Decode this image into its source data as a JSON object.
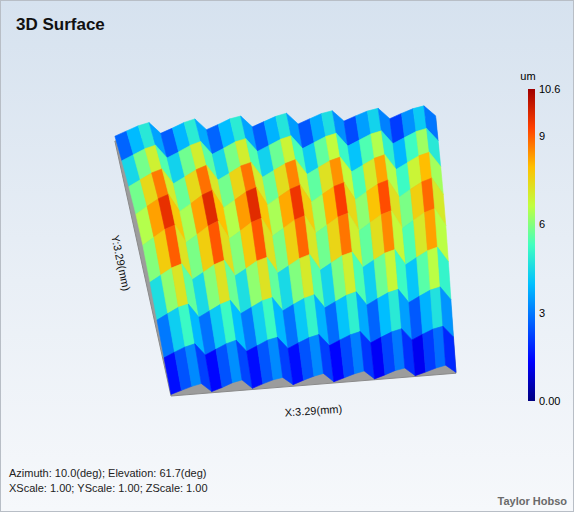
{
  "chart_data": {
    "type": "surface3d",
    "title": "3D Surface",
    "x_label": "X:3.29(mm)",
    "y_label": "Y:3.29(mm)",
    "xlim": [
      0,
      3.29
    ],
    "ylim": [
      0,
      3.29
    ],
    "tick_labels": false,
    "x": [
      0,
      0.12,
      0.24,
      0.35,
      0.47,
      0.59,
      0.71,
      0.82,
      0.94,
      1.06,
      1.18,
      1.29,
      1.41,
      1.53,
      1.65,
      1.76,
      1.88,
      2.0,
      2.12,
      2.23,
      2.35,
      2.47,
      2.59,
      2.7,
      2.82,
      2.94,
      3.06,
      3.17,
      3.29
    ],
    "y": [
      0,
      0.41,
      0.82,
      1.23,
      1.65,
      2.06,
      2.47,
      2.88,
      3.29
    ],
    "z": [
      [
        0.4,
        1.2,
        2.0,
        2.5,
        0.3,
        1.1,
        2.1,
        2.6,
        0.3,
        1.2,
        2.0,
        2.4,
        0.4,
        1.3,
        2.1,
        2.6,
        0.3,
        1.1,
        1.9,
        2.4,
        0.2,
        1.0,
        1.9,
        2.3,
        0.2,
        0.9,
        1.7,
        2.2,
        0.2
      ],
      [
        1.6,
        2.8,
        3.9,
        4.5,
        1.5,
        2.7,
        3.9,
        4.6,
        1.6,
        2.8,
        4.0,
        4.5,
        1.5,
        2.7,
        3.8,
        4.4,
        1.4,
        2.6,
        3.7,
        4.3,
        1.3,
        2.5,
        3.6,
        4.2,
        1.2,
        2.4,
        3.5,
        4.0,
        1.1
      ],
      [
        3.1,
        4.5,
        5.9,
        6.5,
        3.0,
        4.4,
        5.8,
        6.6,
        3.1,
        4.5,
        5.9,
        6.5,
        3.0,
        4.4,
        5.7,
        6.4,
        2.9,
        4.3,
        5.6,
        6.3,
        2.8,
        4.2,
        5.5,
        6.1,
        2.6,
        4.0,
        5.3,
        5.9,
        2.5
      ],
      [
        4.6,
        6.2,
        7.8,
        8.6,
        4.5,
        6.1,
        7.8,
        8.7,
        4.6,
        6.2,
        7.9,
        8.6,
        4.5,
        6.1,
        7.7,
        8.5,
        4.4,
        6.0,
        7.6,
        8.3,
        4.3,
        5.9,
        7.4,
        8.1,
        4.1,
        5.7,
        7.2,
        7.9,
        4.0
      ],
      [
        5.7,
        7.5,
        9.3,
        10.2,
        5.6,
        7.4,
        9.3,
        10.4,
        5.7,
        7.5,
        9.4,
        10.3,
        5.6,
        7.4,
        9.2,
        10.1,
        5.5,
        7.3,
        9.1,
        9.9,
        5.3,
        7.1,
        8.9,
        9.7,
        5.1,
        6.9,
        8.6,
        9.4,
        5.0
      ],
      [
        5.5,
        7.3,
        9.0,
        9.9,
        5.4,
        7.2,
        9.1,
        10.1,
        5.5,
        7.3,
        9.1,
        10.0,
        5.4,
        7.2,
        8.9,
        9.8,
        5.3,
        7.1,
        8.8,
        9.6,
        5.1,
        6.9,
        8.6,
        9.4,
        4.9,
        6.7,
        8.3,
        9.1,
        4.8
      ],
      [
        4.5,
        6.0,
        7.5,
        8.3,
        4.4,
        5.9,
        7.5,
        8.4,
        4.5,
        6.0,
        7.6,
        8.3,
        4.4,
        5.9,
        7.4,
        8.2,
        4.3,
        5.8,
        7.3,
        8.0,
        4.1,
        5.6,
        7.1,
        7.8,
        3.9,
        5.4,
        6.9,
        7.6,
        3.8
      ],
      [
        3.0,
        4.3,
        5.6,
        6.3,
        2.9,
        4.2,
        5.6,
        6.4,
        3.0,
        4.3,
        5.7,
        6.3,
        2.9,
        4.2,
        5.5,
        6.2,
        2.8,
        4.1,
        5.4,
        6.0,
        2.6,
        3.9,
        5.2,
        5.8,
        2.4,
        3.7,
        5.0,
        5.6,
        2.3
      ],
      [
        1.2,
        2.3,
        3.4,
        4.0,
        1.1,
        2.2,
        3.4,
        4.1,
        1.2,
        2.3,
        3.5,
        4.0,
        1.1,
        2.2,
        3.3,
        3.9,
        1.0,
        2.1,
        3.2,
        3.7,
        0.9,
        2.0,
        3.0,
        3.5,
        0.7,
        1.8,
        2.8,
        3.3,
        0.6
      ]
    ],
    "colorbar": {
      "title": "um",
      "range": [
        0,
        10.6
      ],
      "ticks": [
        {
          "value": 0,
          "label": "0.00"
        },
        3,
        6,
        9,
        10.6
      ]
    },
    "footer": [
      "Azimuth: 10.0(deg); Elevation: 61.7(deg)",
      "XScale: 1.00; YScale: 1.00; ZScale: 1.00"
    ],
    "brand": "Taylor Hobso"
  }
}
